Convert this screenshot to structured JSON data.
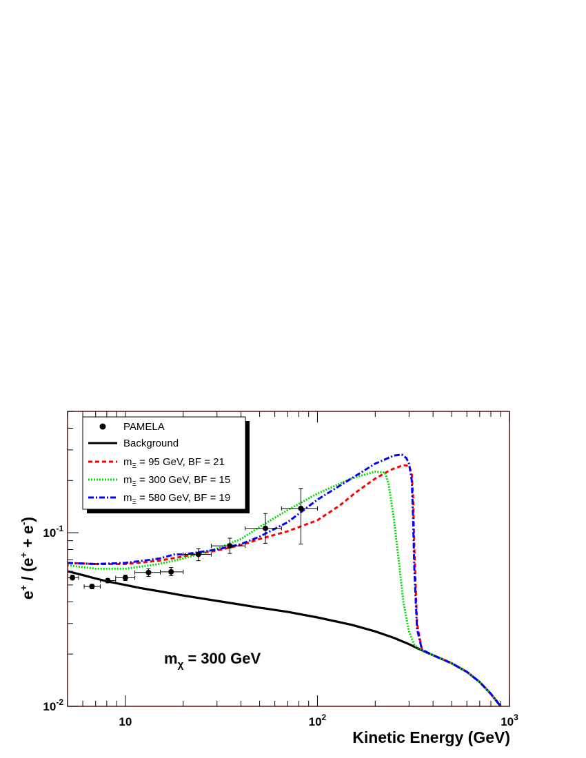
{
  "chart_data": {
    "type": "line",
    "xlabel": "Kinetic Energy (GeV)",
    "ylabel_parts": {
      "main": "e",
      "sup1": "+",
      "mid": " / (e",
      "sup2": "+",
      "mid2": " + e",
      "sup3": "-",
      "end": ")"
    },
    "x_scale": "log",
    "y_scale": "log",
    "xlim": [
      5,
      1000
    ],
    "ylim": [
      0.01,
      0.5
    ],
    "x_ticks": [
      {
        "value": 10,
        "base": "10",
        "exp": ""
      },
      {
        "value": 100,
        "base": "10",
        "exp": "2"
      },
      {
        "value": 1000,
        "base": "10",
        "exp": "3"
      }
    ],
    "y_ticks": [
      {
        "value": 0.01,
        "base": "10",
        "exp": "-2"
      },
      {
        "value": 0.1,
        "base": "10",
        "exp": "-1"
      }
    ],
    "annotation": {
      "main": "m",
      "sub": "χ",
      "rest": " = 300 GeV"
    },
    "legend_position": "top-left",
    "colors": {
      "pamela": "#000000",
      "background": "#000000",
      "m95": "#ff0000",
      "m300": "#00dd00",
      "m580": "#0000ff",
      "frame": "#5a1010"
    },
    "pamela": {
      "name": "PAMELA",
      "points": [
        {
          "x": 5.3,
          "y": 0.055,
          "xlo": 5.0,
          "xhi": 5.7,
          "ylo": 0.054,
          "yhi": 0.057
        },
        {
          "x": 6.7,
          "y": 0.049,
          "xlo": 6.1,
          "xhi": 7.4,
          "ylo": 0.0475,
          "yhi": 0.0505
        },
        {
          "x": 8.1,
          "y": 0.053,
          "xlo": 7.4,
          "xhi": 8.9,
          "ylo": 0.0515,
          "yhi": 0.0545
        },
        {
          "x": 10.0,
          "y": 0.055,
          "xlo": 8.9,
          "xhi": 11.2,
          "ylo": 0.053,
          "yhi": 0.057
        },
        {
          "x": 13.2,
          "y": 0.059,
          "xlo": 11.2,
          "xhi": 15.2,
          "ylo": 0.056,
          "yhi": 0.062
        },
        {
          "x": 17.3,
          "y": 0.0595,
          "xlo": 15.2,
          "xhi": 20.0,
          "ylo": 0.0565,
          "yhi": 0.063
        },
        {
          "x": 24.0,
          "y": 0.075,
          "xlo": 20.0,
          "xhi": 28.0,
          "ylo": 0.069,
          "yhi": 0.081
        },
        {
          "x": 35.0,
          "y": 0.084,
          "xlo": 28.0,
          "xhi": 42.0,
          "ylo": 0.076,
          "yhi": 0.093
        },
        {
          "x": 53.6,
          "y": 0.106,
          "xlo": 42.0,
          "xhi": 65.0,
          "ylo": 0.087,
          "yhi": 0.129
        },
        {
          "x": 82.0,
          "y": 0.138,
          "xlo": 65.0,
          "xhi": 100.0,
          "ylo": 0.086,
          "yhi": 0.18
        }
      ]
    },
    "series": [
      {
        "name": "Background",
        "style": "solid",
        "x": [
          5,
          6,
          7,
          8,
          10,
          12,
          15,
          20,
          30,
          40,
          50,
          70,
          100,
          150,
          200,
          250,
          300,
          350,
          400,
          500,
          600,
          700,
          800,
          900
        ],
        "y": [
          0.06,
          0.057,
          0.0545,
          0.0525,
          0.05,
          0.048,
          0.046,
          0.0435,
          0.0405,
          0.0385,
          0.037,
          0.035,
          0.0325,
          0.0295,
          0.027,
          0.0248,
          0.0228,
          0.021,
          0.0197,
          0.0177,
          0.0158,
          0.0138,
          0.0118,
          0.01
        ]
      },
      {
        "name": "m_Ξ = 95 GeV, BF = 21",
        "legend": {
          "pre": "m",
          "sub": "Ξ",
          "post": " = 95 GeV, BF = 21"
        },
        "style": "dashed",
        "x": [
          5,
          7,
          10,
          15,
          20,
          30,
          40,
          50,
          70,
          100,
          130,
          160,
          200,
          240,
          280,
          300,
          310,
          315,
          320,
          330,
          350,
          400,
          500,
          600,
          700,
          800,
          900
        ],
        "y": [
          0.067,
          0.066,
          0.066,
          0.069,
          0.073,
          0.079,
          0.085,
          0.092,
          0.102,
          0.118,
          0.143,
          0.172,
          0.205,
          0.23,
          0.245,
          0.243,
          0.22,
          0.16,
          0.08,
          0.03,
          0.0212,
          0.0197,
          0.0177,
          0.0158,
          0.0138,
          0.0118,
          0.01
        ]
      },
      {
        "name": "m_Ξ = 300 GeV, BF = 15",
        "legend": {
          "pre": "m",
          "sub": "Ξ",
          "post": " = 300 GeV, BF = 15"
        },
        "style": "dotted",
        "x": [
          5,
          7,
          10,
          15,
          20,
          30,
          40,
          50,
          70,
          100,
          150,
          200,
          225,
          235,
          250,
          265,
          280,
          300,
          320,
          350,
          400,
          500,
          600,
          700,
          800,
          900
        ],
        "y": [
          0.065,
          0.062,
          0.062,
          0.066,
          0.071,
          0.081,
          0.092,
          0.108,
          0.135,
          0.168,
          0.205,
          0.225,
          0.222,
          0.19,
          0.12,
          0.07,
          0.04,
          0.027,
          0.0225,
          0.021,
          0.0197,
          0.0177,
          0.0158,
          0.0138,
          0.0118,
          0.01
        ]
      },
      {
        "name": "m_Ξ = 580 GeV, BF = 19",
        "legend": {
          "pre": "m",
          "sub": "Ξ",
          "post": " = 580 GeV, BF = 19"
        },
        "style": "dashdot",
        "x": [
          5,
          7,
          10,
          15,
          18,
          20,
          30,
          40,
          50,
          70,
          100,
          150,
          200,
          250,
          275,
          290,
          300,
          310,
          315,
          320,
          330,
          350,
          400,
          500,
          600,
          700,
          800,
          900
        ],
        "y": [
          0.067,
          0.066,
          0.067,
          0.071,
          0.075,
          0.075,
          0.08,
          0.086,
          0.095,
          0.115,
          0.155,
          0.205,
          0.25,
          0.278,
          0.282,
          0.27,
          0.25,
          0.2,
          0.12,
          0.06,
          0.028,
          0.0212,
          0.0197,
          0.0177,
          0.0158,
          0.0138,
          0.0118,
          0.01
        ]
      }
    ]
  }
}
